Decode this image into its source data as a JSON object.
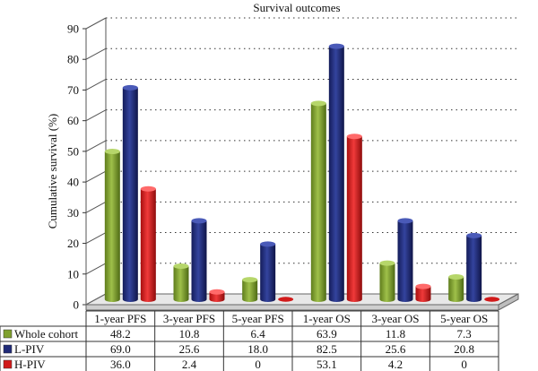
{
  "chart_data": {
    "type": "bar",
    "title": "Survival outcomes",
    "ylabel": "Cumulative survival (%)",
    "xlabel": "",
    "ylim": [
      0,
      90
    ],
    "yticks": [
      0,
      10,
      20,
      30,
      40,
      50,
      60,
      70,
      80,
      90
    ],
    "grid": true,
    "legend": "bottom-left data table",
    "categories": [
      "1-year PFS",
      "3-year PFS",
      "5-year PFS",
      "1-year OS",
      "3-year OS",
      "5-year OS"
    ],
    "series": [
      {
        "name": "Whole cohort",
        "color": "#7fa02e",
        "values": [
          48.2,
          10.8,
          6.4,
          63.9,
          11.8,
          7.3
        ],
        "labels": [
          "48.2",
          "10.8",
          "6.4",
          "63.9",
          "11.8",
          "7.3"
        ]
      },
      {
        "name": "L-PIV",
        "color": "#1f2a78",
        "values": [
          69.0,
          25.6,
          18.0,
          82.5,
          25.6,
          20.8
        ],
        "labels": [
          "69.0",
          "25.6",
          "18.0",
          "82.5",
          "25.6",
          "20.8"
        ]
      },
      {
        "name": "H-PIV",
        "color": "#d11a1a",
        "values": [
          36.0,
          2.4,
          0,
          53.1,
          4.2,
          0
        ],
        "labels": [
          "36.0",
          "2.4",
          "0",
          "53.1",
          "4.2",
          "0"
        ]
      }
    ]
  }
}
